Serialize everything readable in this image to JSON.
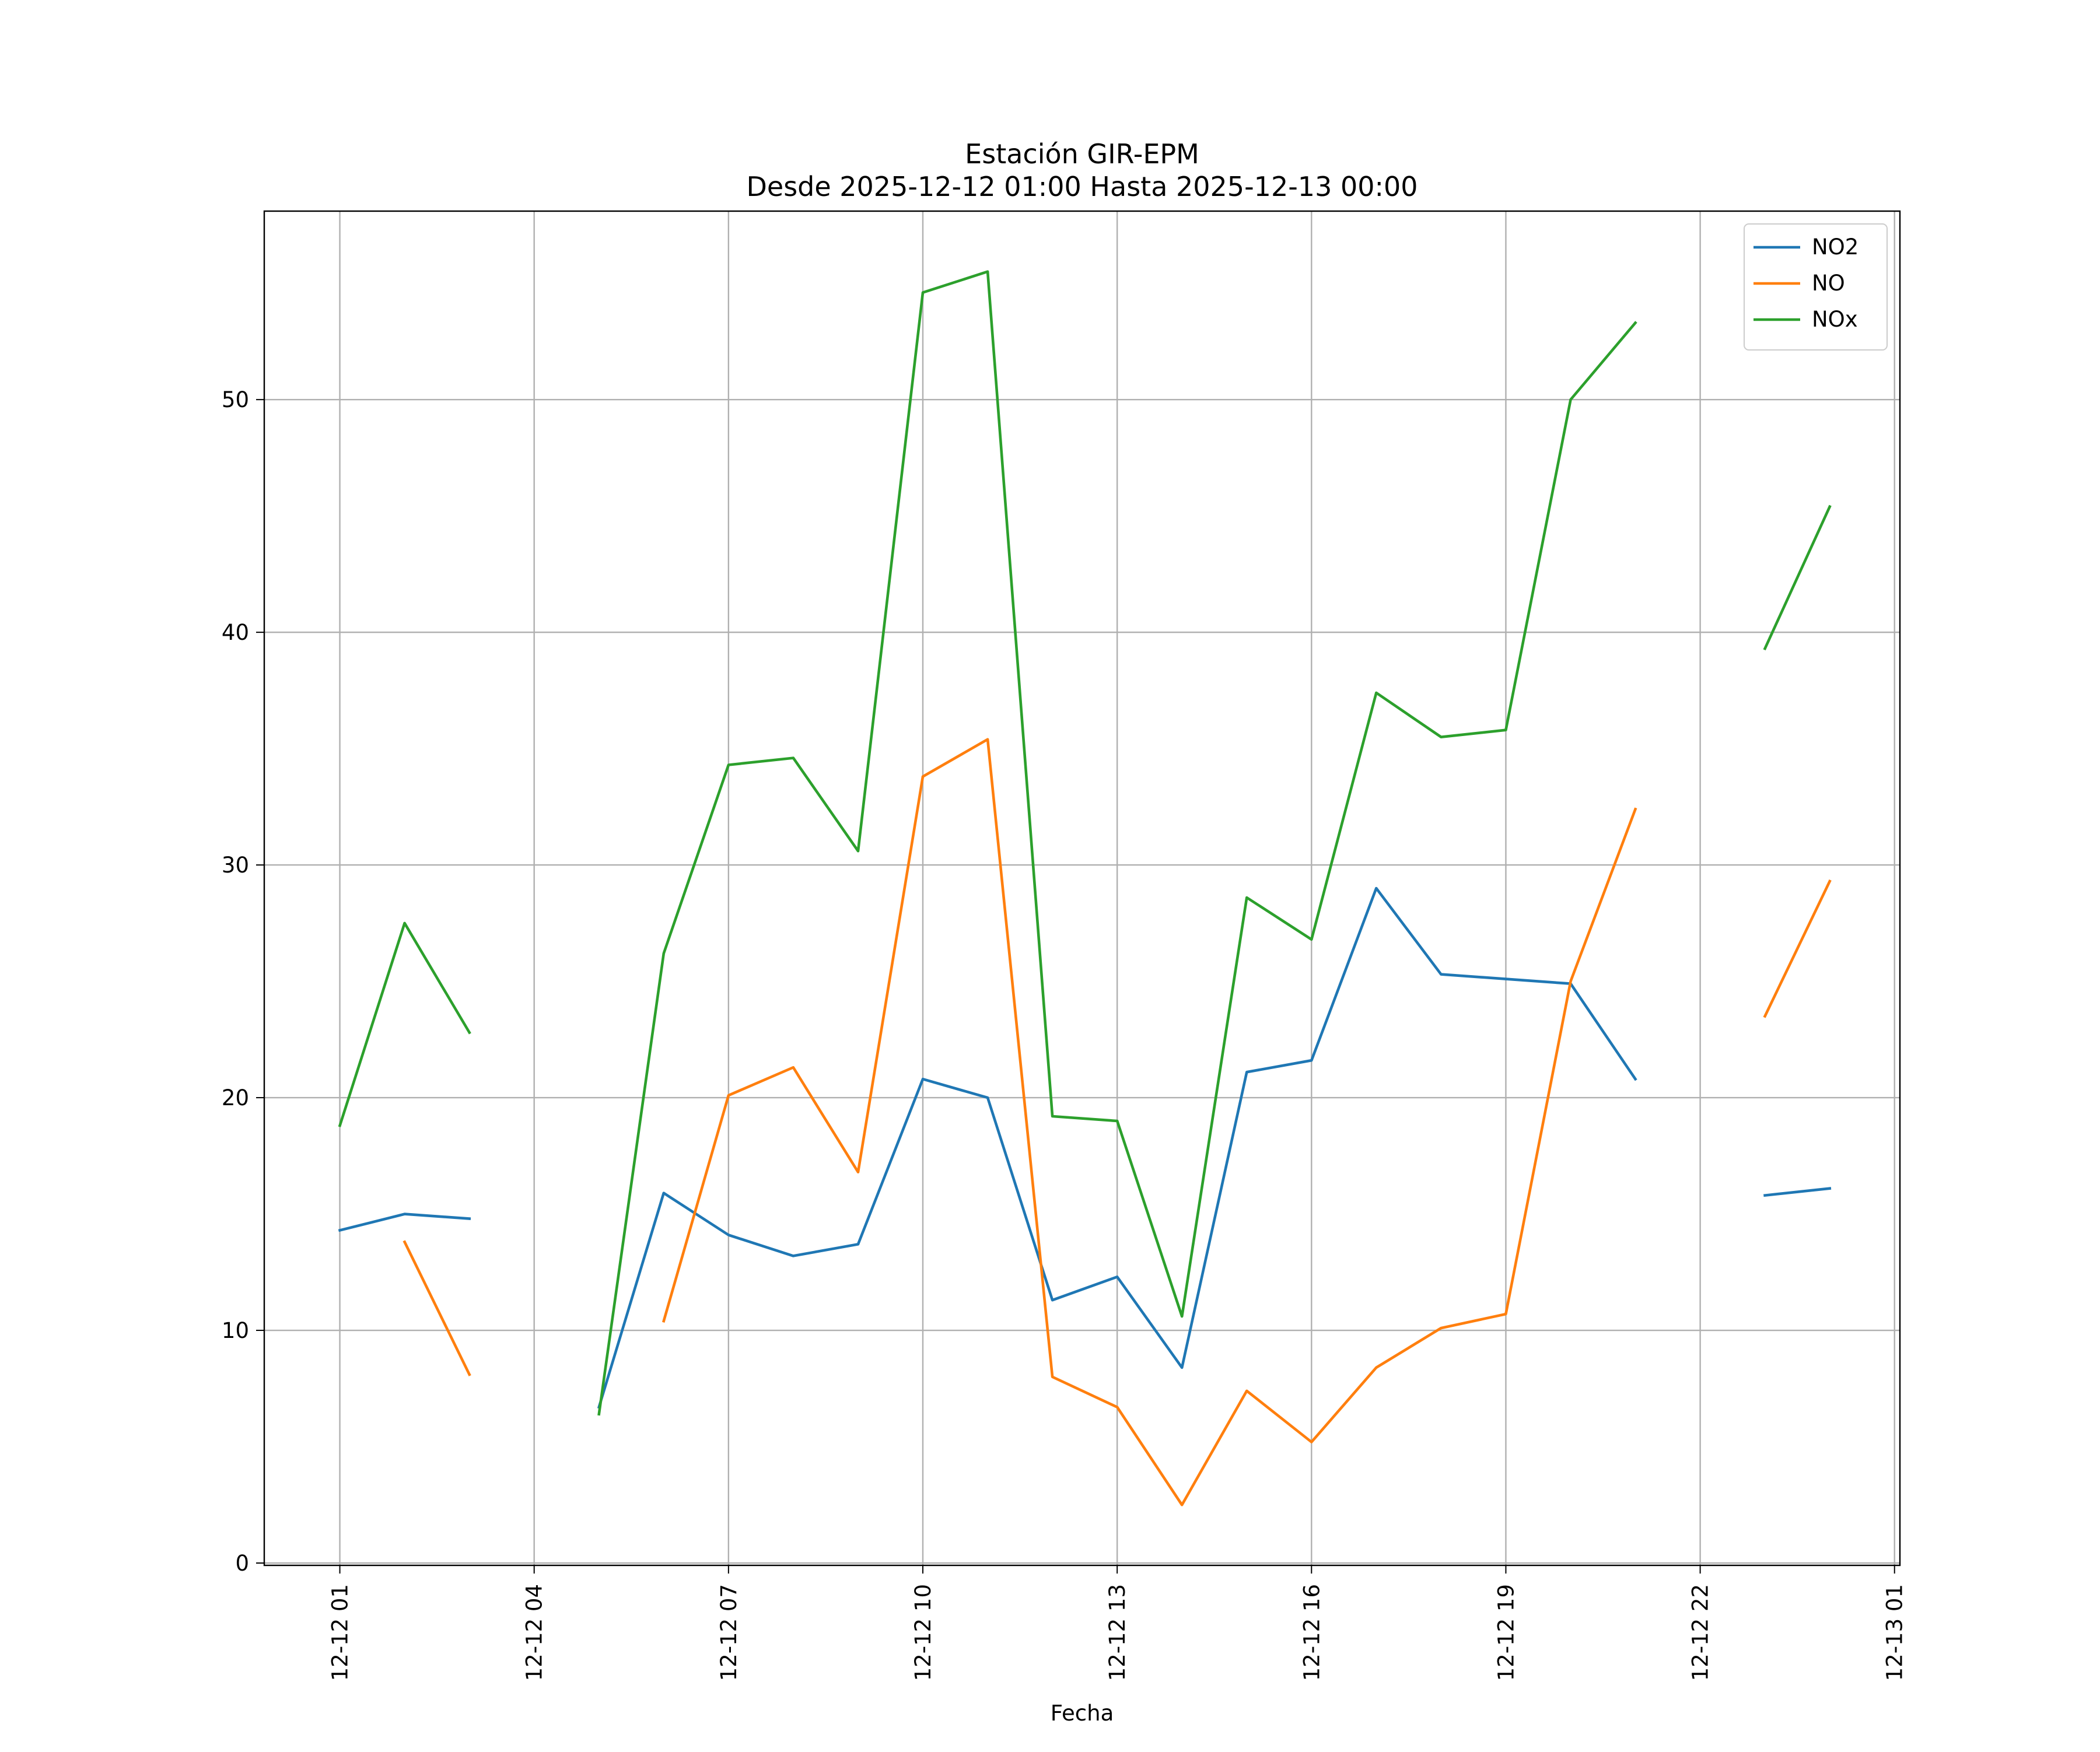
{
  "chart_data": {
    "type": "line",
    "title": "Estación GIR-EPM",
    "subtitle": "Desde 2025-12-12 01:00 Hasta 2025-12-13 00:00",
    "xlabel": "Fecha",
    "ylabel": "",
    "x": [
      "2025-12-12 01:00",
      "2025-12-12 02:00",
      "2025-12-12 03:00",
      "2025-12-12 04:00",
      "2025-12-12 05:00",
      "2025-12-12 06:00",
      "2025-12-12 07:00",
      "2025-12-12 08:00",
      "2025-12-12 09:00",
      "2025-12-12 10:00",
      "2025-12-12 11:00",
      "2025-12-12 12:00",
      "2025-12-12 13:00",
      "2025-12-12 14:00",
      "2025-12-12 15:00",
      "2025-12-12 16:00",
      "2025-12-12 17:00",
      "2025-12-12 18:00",
      "2025-12-12 19:00",
      "2025-12-12 20:00",
      "2025-12-12 21:00",
      "2025-12-12 22:00",
      "2025-12-12 23:00",
      "2025-12-13 00:00"
    ],
    "xticks": [
      "12-12 01",
      "12-12 04",
      "12-12 07",
      "12-12 10",
      "12-12 13",
      "12-12 16",
      "12-12 19",
      "12-12 22",
      "12-13 01"
    ],
    "xlim": [
      "2025-12-11 23:50",
      "2025-12-13 01:05"
    ],
    "yticks": [
      0,
      10,
      20,
      30,
      40,
      50
    ],
    "ylim": [
      -0.1,
      58.1
    ],
    "grid": true,
    "legend": "top-right",
    "series": [
      {
        "name": "NO2",
        "color": "#1f77b4",
        "values": [
          14.3,
          15.0,
          14.8,
          null,
          6.7,
          15.9,
          14.1,
          13.2,
          13.7,
          20.8,
          20.0,
          11.3,
          12.3,
          8.4,
          21.1,
          21.6,
          29.0,
          25.3,
          25.1,
          24.9,
          20.8,
          null,
          15.8,
          16.1
        ]
      },
      {
        "name": "NO",
        "color": "#ff7f0e",
        "values": [
          null,
          13.8,
          8.1,
          null,
          null,
          10.4,
          20.1,
          21.3,
          16.8,
          33.8,
          35.4,
          8.0,
          6.7,
          2.5,
          7.4,
          5.2,
          8.4,
          10.1,
          10.7,
          25.0,
          32.4,
          null,
          23.5,
          29.3
        ]
      },
      {
        "name": "NOx",
        "color": "#2ca02c",
        "values": [
          18.8,
          27.5,
          22.8,
          null,
          6.4,
          26.2,
          34.3,
          34.6,
          30.6,
          54.6,
          55.5,
          19.2,
          19.0,
          10.6,
          28.6,
          26.8,
          37.4,
          35.5,
          35.8,
          50.0,
          53.3,
          null,
          39.3,
          45.4
        ]
      }
    ]
  }
}
